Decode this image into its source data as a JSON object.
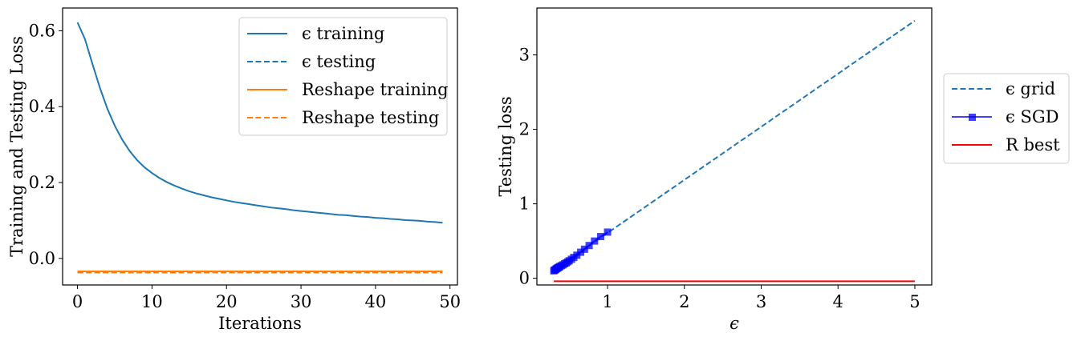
{
  "chart_data": [
    {
      "type": "line",
      "xlabel": "Iterations",
      "ylabel": "Training and Testing Loss",
      "xlim": [
        -2,
        51
      ],
      "ylim": [
        -0.07,
        0.66
      ],
      "xticks": [
        0,
        10,
        20,
        30,
        40,
        50
      ],
      "yticks": [
        0.0,
        0.2,
        0.4,
        0.6
      ],
      "xtick_labels": [
        "0",
        "10",
        "20",
        "30",
        "40",
        "50"
      ],
      "ytick_labels": [
        "0.0",
        "0.2",
        "0.4",
        "0.6"
      ],
      "grid": false,
      "legend_position": "top-right",
      "series": [
        {
          "name": "ϵ training",
          "color": "#1f77b4",
          "style": "solid",
          "x": [
            0,
            1,
            2,
            3,
            4,
            5,
            6,
            7,
            8,
            9,
            10,
            11,
            12,
            13,
            14,
            15,
            16,
            17,
            18,
            19,
            20,
            21,
            22,
            23,
            24,
            25,
            26,
            27,
            28,
            29,
            30,
            31,
            32,
            33,
            34,
            35,
            36,
            37,
            38,
            39,
            40,
            41,
            42,
            43,
            44,
            45,
            46,
            47,
            48,
            49
          ],
          "y": [
            0.622,
            0.578,
            0.513,
            0.45,
            0.395,
            0.35,
            0.313,
            0.283,
            0.259,
            0.24,
            0.225,
            0.212,
            0.201,
            0.192,
            0.184,
            0.177,
            0.171,
            0.166,
            0.161,
            0.157,
            0.153,
            0.149,
            0.146,
            0.143,
            0.14,
            0.137,
            0.134,
            0.132,
            0.13,
            0.127,
            0.125,
            0.123,
            0.121,
            0.119,
            0.117,
            0.115,
            0.114,
            0.112,
            0.11,
            0.109,
            0.107,
            0.106,
            0.104,
            0.103,
            0.101,
            0.1,
            0.099,
            0.097,
            0.096,
            0.094
          ]
        },
        {
          "name": "ϵ testing",
          "color": "#1f77b4",
          "style": "dashed",
          "x": [
            0,
            49
          ],
          "y": [
            -0.037,
            -0.037
          ]
        },
        {
          "name": "Reshape training",
          "color": "#ff7f0e",
          "style": "solid",
          "x": [
            0,
            49
          ],
          "y": [
            -0.034,
            -0.034
          ]
        },
        {
          "name": "Reshape testing",
          "color": "#ff7f0e",
          "style": "dashed",
          "x": [
            0,
            49
          ],
          "y": [
            -0.037,
            -0.037
          ]
        }
      ]
    },
    {
      "type": "line",
      "xlabel": "ϵ",
      "ylabel": "Testing loss",
      "xlim": [
        0.08,
        5.22
      ],
      "ylim": [
        -0.09,
        3.63
      ],
      "xticks": [
        1,
        2,
        3,
        4,
        5
      ],
      "yticks": [
        0,
        1,
        2,
        3
      ],
      "xtick_labels": [
        "1",
        "2",
        "3",
        "4",
        "5"
      ],
      "ytick_labels": [
        "0",
        "1",
        "2",
        "3"
      ],
      "grid": false,
      "legend_position": "outside-right",
      "series": [
        {
          "name": "ϵ grid",
          "color": "#1f77b4",
          "style": "dashed",
          "x": [
            0.3,
            5.0
          ],
          "y": [
            0.11,
            3.46
          ]
        },
        {
          "name": "ϵ SGD",
          "color": "#0000ff",
          "style": "solid",
          "marker": "square",
          "x": [
            0.3,
            0.31,
            0.32,
            0.33,
            0.34,
            0.35,
            0.36,
            0.37,
            0.38,
            0.4,
            0.42,
            0.44,
            0.46,
            0.48,
            0.5,
            0.53,
            0.56,
            0.6,
            0.65,
            0.7,
            0.76,
            0.83,
            0.91,
            1.0
          ],
          "y": [
            0.1,
            0.11,
            0.115,
            0.125,
            0.13,
            0.14,
            0.145,
            0.15,
            0.16,
            0.17,
            0.18,
            0.195,
            0.205,
            0.22,
            0.235,
            0.255,
            0.28,
            0.31,
            0.35,
            0.39,
            0.44,
            0.5,
            0.56,
            0.62
          ]
        },
        {
          "name": "R best",
          "color": "#ff0000",
          "style": "solid",
          "x": [
            0.3,
            5.0
          ],
          "y": [
            -0.04,
            -0.04
          ]
        }
      ]
    }
  ]
}
